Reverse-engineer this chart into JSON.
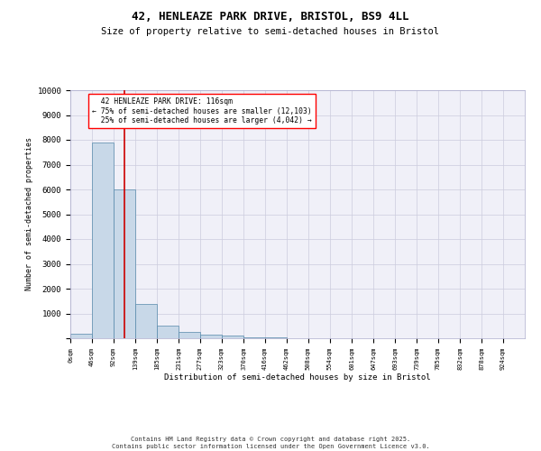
{
  "title": "42, HENLEAZE PARK DRIVE, BRISTOL, BS9 4LL",
  "subtitle": "Size of property relative to semi-detached houses in Bristol",
  "xlabel": "Distribution of semi-detached houses by size in Bristol",
  "ylabel": "Number of semi-detached properties",
  "bar_color": "#c8d8e8",
  "bar_edge_color": "#5588aa",
  "background_color": "#f0f0f8",
  "grid_color": "#ccccdd",
  "bin_edges": [
    0,
    46,
    92,
    139,
    185,
    231,
    277,
    323,
    370,
    416,
    462,
    508,
    554,
    601,
    647,
    693,
    739,
    785,
    832,
    878,
    924,
    970
  ],
  "bar_heights": [
    200,
    7900,
    6000,
    1400,
    500,
    250,
    150,
    100,
    50,
    20,
    10,
    5,
    3,
    2,
    1,
    1,
    0,
    0,
    0,
    0,
    0
  ],
  "tick_labels": [
    "0sqm",
    "46sqm",
    "92sqm",
    "139sqm",
    "185sqm",
    "231sqm",
    "277sqm",
    "323sqm",
    "370sqm",
    "416sqm",
    "462sqm",
    "508sqm",
    "554sqm",
    "601sqm",
    "647sqm",
    "693sqm",
    "739sqm",
    "785sqm",
    "832sqm",
    "878sqm",
    "924sqm"
  ],
  "property_size": 116,
  "property_label": "42 HENLEAZE PARK DRIVE: 116sqm",
  "pct_smaller": 75,
  "count_smaller": 12103,
  "pct_larger": 25,
  "count_larger": 4042,
  "red_line_color": "#cc0000",
  "ylim": [
    0,
    10000
  ],
  "yticks": [
    0,
    1000,
    2000,
    3000,
    4000,
    5000,
    6000,
    7000,
    8000,
    9000,
    10000
  ],
  "footer_line1": "Contains HM Land Registry data © Crown copyright and database right 2025.",
  "footer_line2": "Contains public sector information licensed under the Open Government Licence v3.0."
}
